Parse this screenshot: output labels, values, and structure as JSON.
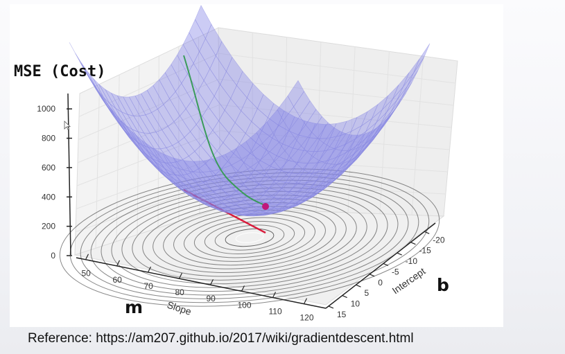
{
  "reference": {
    "text": "Reference: https://am207.github.io/2017/wiki/gradientdescent.html"
  },
  "chart_data": {
    "type": "surface3d",
    "title": "",
    "zlabel": "MSE (Cost)",
    "xlabel_letter": "m",
    "xlabel": "Slope",
    "ylabel_letter": "b",
    "ylabel": "Intercept",
    "x_ticks": [
      50,
      60,
      70,
      80,
      90,
      100,
      110,
      120
    ],
    "y_ticks": [
      15,
      10,
      5,
      0,
      -5,
      -10,
      -15,
      -20
    ],
    "z_ticks": [
      0,
      200,
      400,
      600,
      800,
      1000
    ],
    "zlim": [
      0,
      1100
    ],
    "surface": {
      "function": "MSE(m, b)",
      "min_at": {
        "m": 78,
        "b": -3,
        "mse": 40
      },
      "color": "#7f7fe6",
      "opacity": 0.4
    },
    "gradient_path": {
      "color": "#3a9b5a",
      "start": {
        "mse": 1000
      },
      "end": {
        "mse": 150
      }
    },
    "current_point": {
      "color": "#c0187a"
    },
    "tangent_line": {
      "color": "#d81b3b"
    },
    "contours": {
      "color": "#555555",
      "levels": 18
    },
    "grid": true,
    "legend": "none"
  }
}
